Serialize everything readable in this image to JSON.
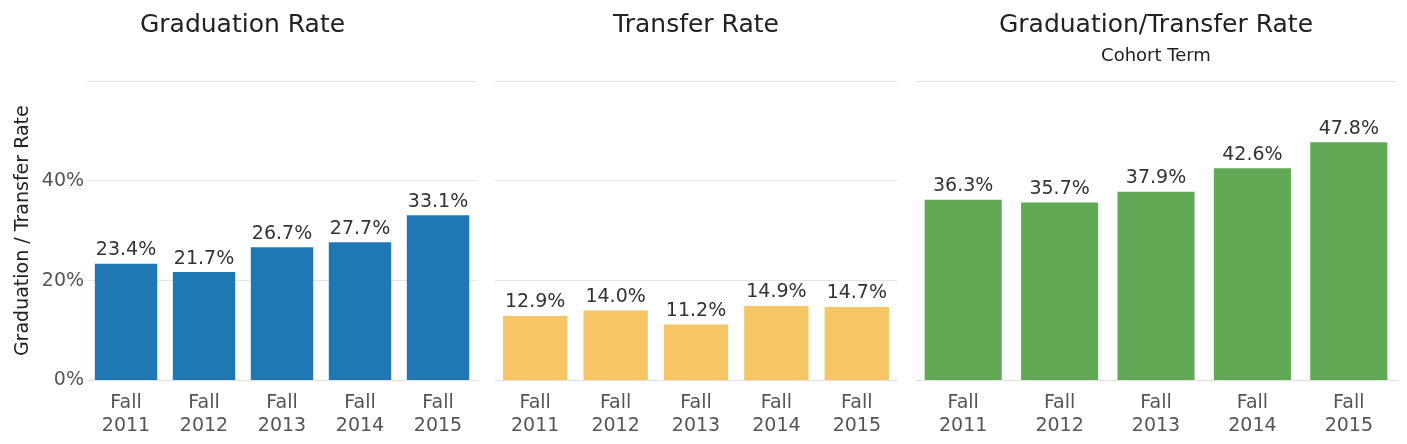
{
  "chart_data": [
    {
      "type": "bar",
      "title": "Graduation Rate",
      "ylabel": "Graduation / Transfer Rate",
      "categories": [
        "Fall 2011",
        "Fall 2012",
        "Fall 2013",
        "Fall 2014",
        "Fall 2015"
      ],
      "values": [
        23.4,
        21.7,
        26.7,
        27.7,
        33.1
      ],
      "color": "#1f77b4",
      "value_labels": [
        "23.4%",
        "21.7%",
        "26.7%",
        "27.7%",
        "33.1%"
      ],
      "ylim": [
        0,
        60
      ],
      "yticks": [
        {
          "value": 0,
          "label": "0%"
        },
        {
          "value": 20,
          "label": "20%"
        },
        {
          "value": 40,
          "label": "40%"
        },
        {
          "value": 60,
          "label": null
        }
      ],
      "grid": "y"
    },
    {
      "type": "bar",
      "title": "Transfer Rate",
      "categories": [
        "Fall 2011",
        "Fall 2012",
        "Fall 2013",
        "Fall 2014",
        "Fall 2015"
      ],
      "values": [
        12.9,
        14.0,
        11.2,
        14.9,
        14.7
      ],
      "color": "#f5c665",
      "value_labels": [
        "12.9%",
        "14.0%",
        "11.2%",
        "14.9%",
        "14.7%"
      ],
      "ylim": [
        0,
        60
      ],
      "yticks": [
        0,
        20,
        40,
        60
      ],
      "grid": "y",
      "tick_labels": "x"
    },
    {
      "type": "bar",
      "title": "Graduation/Transfer Rate",
      "subtitle": "Cohort Term",
      "categories": [
        "Fall 2011",
        "Fall 2012",
        "Fall 2013",
        "Fall 2014",
        "Fall 2015"
      ],
      "values": [
        36.3,
        35.7,
        37.9,
        42.6,
        47.8
      ],
      "color": "#62a956",
      "value_labels": [
        "36.3%",
        "35.7%",
        "37.9%",
        "42.6%",
        "47.8%"
      ],
      "ylim": [
        0,
        60
      ],
      "yticks": [
        0,
        60
      ],
      "grid": "y",
      "tick_labels": "x"
    }
  ]
}
